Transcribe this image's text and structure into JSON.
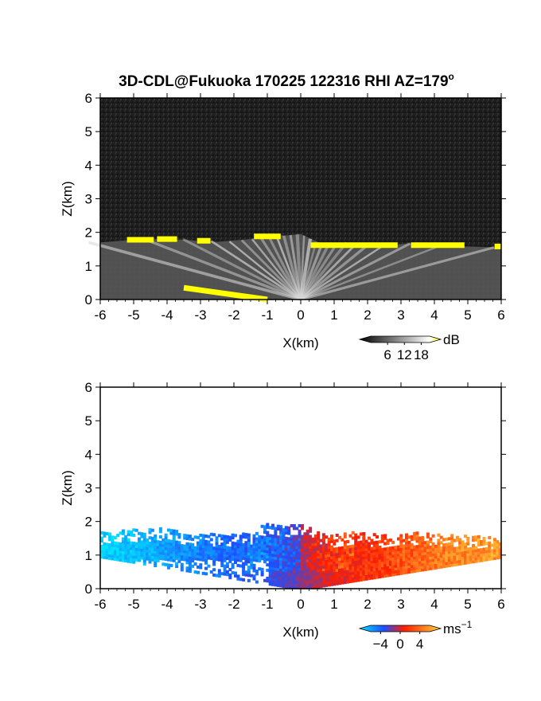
{
  "title": "3D-CDL@Fukuoka 170225 122316 RHI AZ=179",
  "title_degree": "o",
  "chart_data": [
    {
      "type": "heatmap",
      "panel": "reflectivity",
      "title": "",
      "xlabel": "X(km)",
      "ylabel": "Z(km)",
      "xlim": [
        -6,
        6
      ],
      "ylim": [
        0,
        6
      ],
      "xticks": [
        "-6",
        "-5",
        "-4",
        "-3",
        "-2",
        "-1",
        "0",
        "1",
        "2",
        "3",
        "4",
        "5",
        "6"
      ],
      "yticks": [
        "0",
        "1",
        "2",
        "3",
        "4",
        "5",
        "6"
      ],
      "background": "#1a1a1a",
      "colorbar": {
        "unit": "dB",
        "ticks": [
          "6",
          "12",
          "18"
        ],
        "range": [
          0,
          21
        ],
        "colors": [
          "#000000",
          "#ffffff",
          "#ffff00"
        ]
      },
      "layer_top_km": [
        [
          -6,
          1.7
        ],
        [
          -5,
          1.78
        ],
        [
          -4.5,
          1.8
        ],
        [
          -4,
          1.8
        ],
        [
          -3.5,
          1.78
        ],
        [
          -3,
          1.74
        ],
        [
          -2.5,
          1.72
        ],
        [
          -1.5,
          1.8
        ],
        [
          -1,
          1.95
        ],
        [
          -0.5,
          1.9
        ],
        [
          0,
          1.95
        ],
        [
          0.5,
          1.72
        ],
        [
          1,
          1.6
        ],
        [
          1.5,
          1.7
        ],
        [
          2,
          1.65
        ],
        [
          2.5,
          1.6
        ],
        [
          3,
          1.65
        ],
        [
          3.5,
          1.7
        ],
        [
          4,
          1.65
        ],
        [
          4.5,
          1.6
        ],
        [
          5,
          1.58
        ],
        [
          6,
          1.55
        ]
      ],
      "strong_echo_segments": [
        {
          "x": [
            -5.2,
            -4.4
          ],
          "z": 1.78
        },
        {
          "x": [
            -4.3,
            -3.7
          ],
          "z": 1.8
        },
        {
          "x": [
            -3.1,
            -2.7
          ],
          "z": 1.75
        },
        {
          "x": [
            -1.4,
            -0.6
          ],
          "z": 1.88
        },
        {
          "x": [
            0.3,
            2.9
          ],
          "z": 1.62
        },
        {
          "x": [
            3.3,
            4.9
          ],
          "z": 1.62
        },
        {
          "x": [
            5.8,
            6.0
          ],
          "z": 1.58
        },
        {
          "x": [
            -3.5,
            -1.0
          ],
          "z": 0.35,
          "slope": -0.14
        }
      ]
    },
    {
      "type": "heatmap",
      "panel": "radial_velocity",
      "title": "",
      "xlabel": "X(km)",
      "ylabel": "Z(km)",
      "xlim": [
        -6,
        6
      ],
      "ylim": [
        0,
        6
      ],
      "xticks": [
        "-6",
        "-5",
        "-4",
        "-3",
        "-2",
        "-1",
        "0",
        "1",
        "2",
        "3",
        "4",
        "5",
        "6"
      ],
      "yticks": [
        "0",
        "1",
        "2",
        "3",
        "4",
        "5",
        "6"
      ],
      "background": "#ffffff",
      "colorbar": {
        "unit": "ms",
        "unit_exp": "−1",
        "ticks": [
          "−4",
          "0",
          "4"
        ],
        "range": [
          -6,
          6
        ],
        "colors": [
          "#00e5ff",
          "#1e4dff",
          "#ff1e00",
          "#ffd23c"
        ]
      },
      "velocity_profile_ms": [
        [
          -6,
          -5.5
        ],
        [
          -5,
          -5.0
        ],
        [
          -4,
          -4.0
        ],
        [
          -3,
          -3.3
        ],
        [
          -2,
          -2.6
        ],
        [
          -1,
          -1.8
        ],
        [
          0,
          -0.5
        ],
        [
          0.5,
          0.8
        ],
        [
          1,
          1.5
        ],
        [
          2,
          2.3
        ],
        [
          3,
          3.2
        ],
        [
          4,
          4.0
        ],
        [
          5,
          4.5
        ],
        [
          6,
          4.8
        ]
      ]
    }
  ]
}
